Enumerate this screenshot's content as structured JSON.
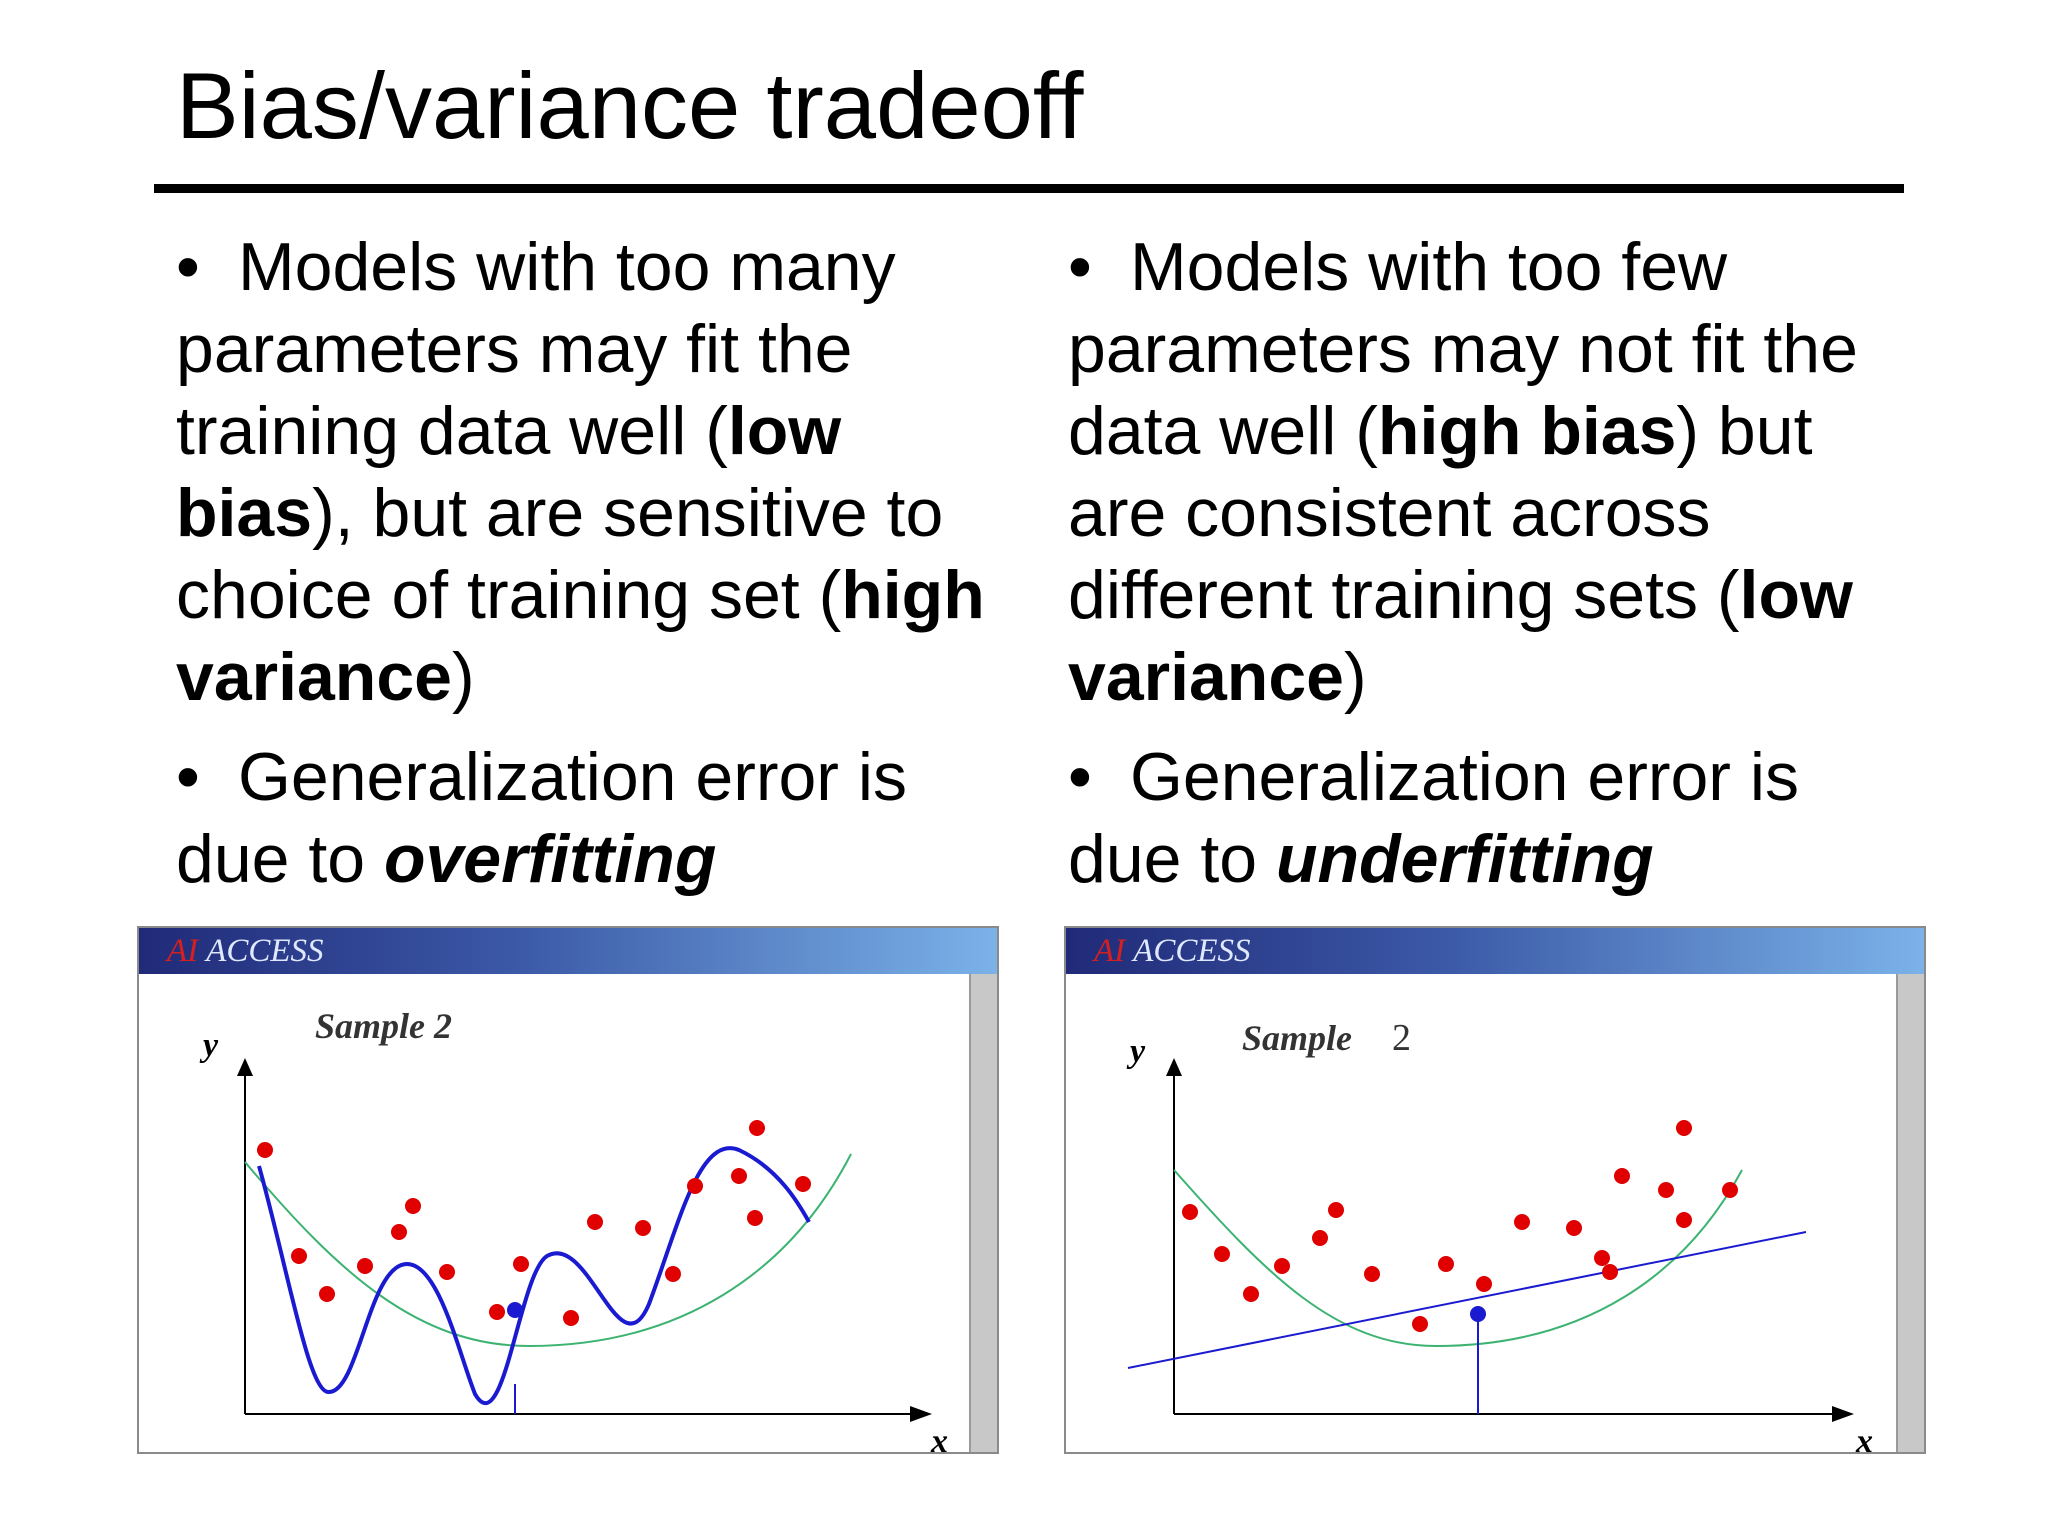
{
  "title": "Bias/variance tradeoff",
  "left_column": {
    "bullet1": {
      "t1": "Models with too many parameters may fit the training data well (",
      "b1": "low bias",
      "t2": "), but are sensitive to choice of training set (",
      "b2": "high variance",
      "t3": ")"
    },
    "bullet2": {
      "t1": "Generalization error is due to ",
      "em": "overfitting"
    }
  },
  "right_column": {
    "bullet1": {
      "t1": "Models with too few parameters may not fit the data well (",
      "b1": "high bias",
      "t2": ") but are consistent across different training sets (",
      "b2": "low variance",
      "t3": ")"
    },
    "bullet2": {
      "t1": "Generalization error is due to ",
      "em": "underfitting"
    }
  },
  "figures": {
    "brand_ai": "AI",
    "brand_access": "ACCESS",
    "y_label": "y",
    "x_label": "x",
    "left_sample": "Sample 2",
    "right_sample_word": "Sample",
    "right_sample_num": "2"
  },
  "colors": {
    "points": "#e00000",
    "fit_curve": "#1a1ad0",
    "true_curve": "#3cb371",
    "axis": "#000000"
  }
}
